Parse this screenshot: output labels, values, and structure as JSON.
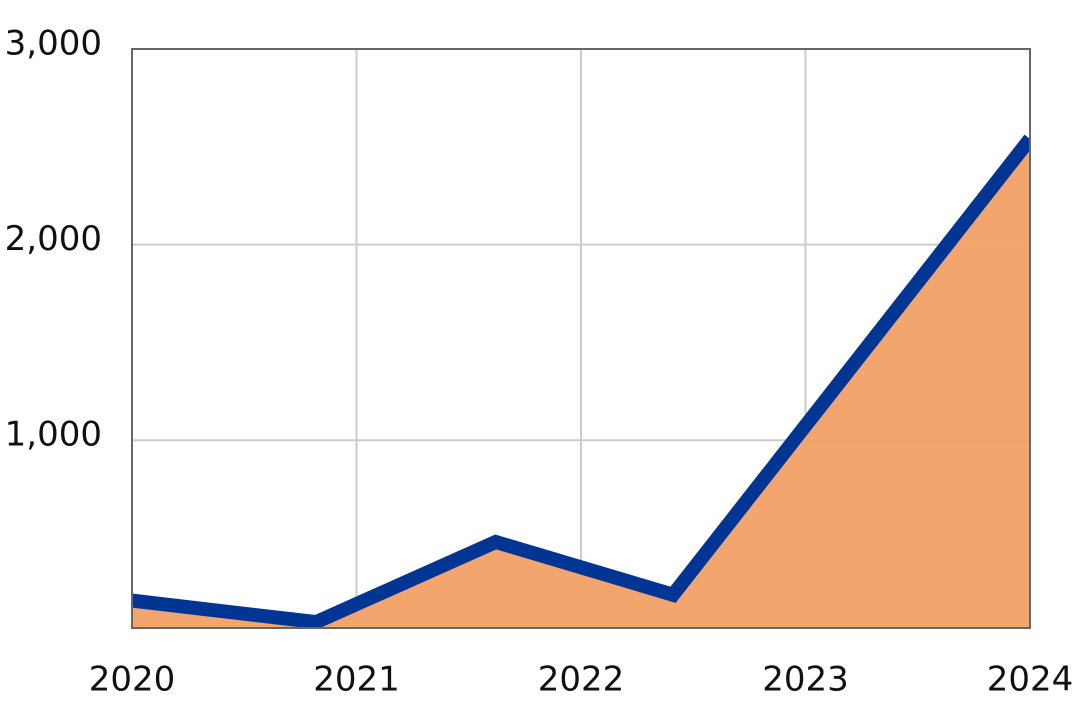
{
  "chart_data": {
    "type": "area",
    "x": [
      2020.0,
      2020.82,
      2021.62,
      2022.41,
      2024.0
    ],
    "values": [
      180,
      70,
      480,
      210,
      2540
    ],
    "color": "#003594",
    "fill": "#f2a066",
    "xlim": [
      2020,
      2024
    ],
    "xticks": [
      2020,
      2021,
      2022,
      2023,
      2024
    ],
    "ylim": [
      40,
      3000
    ],
    "yticks": [
      {
        "value": 1000,
        "label": "1,000"
      },
      {
        "value": 2000,
        "label": "2,000"
      },
      {
        "value": 3000,
        "label": "3,000"
      }
    ],
    "grid": true
  }
}
